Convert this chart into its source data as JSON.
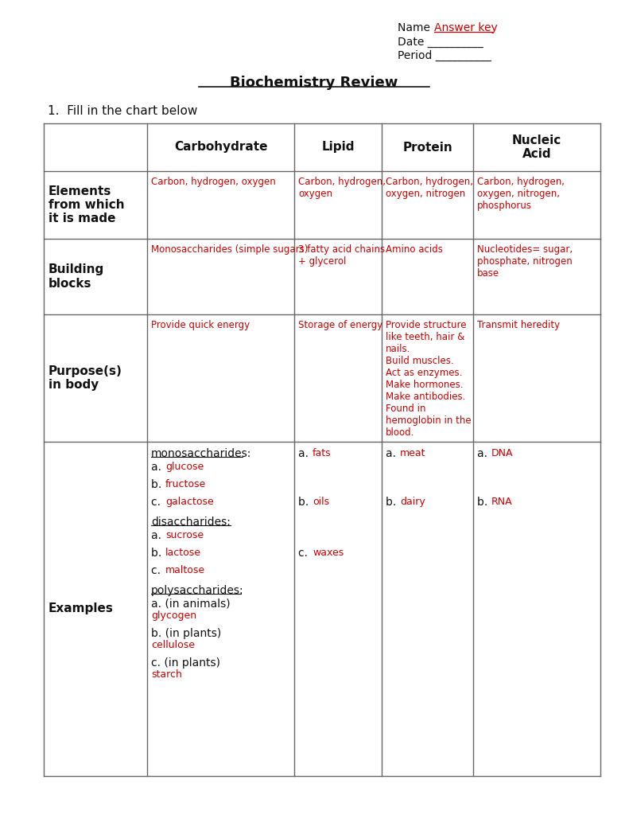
{
  "title": "Biochemistry Review",
  "subtitle": "1.  Fill in the chart below",
  "name_answer": "Answer key",
  "red": "#cc0000",
  "black": "#111111",
  "gray_line": "#666666",
  "bg": "#ffffff",
  "col_headers": [
    "Carbohydrate",
    "Lipid",
    "Protein",
    "Nucleic\nAcid"
  ],
  "row_headers": [
    "Elements\nfrom which\nit is made",
    "Building\nblocks",
    "Purpose(s)\nin body",
    "Examples"
  ],
  "cells_elements": {
    "carb": "Carbon, hydrogen, oxygen",
    "lipid": "Carbon, hydrogen,\noxygen",
    "protein": "Carbon, hydrogen,\noxygen, nitrogen",
    "nucleic": "Carbon, hydrogen,\noxygen, nitrogen,\nphosphorus"
  },
  "cells_building": {
    "carb": "Monosaccharides (simple sugars)",
    "lipid": "3 fatty acid chains\n+ glycerol",
    "protein": "Amino acids",
    "nucleic": "Nucleotides= sugar,\nphosphate, nitrogen\nbase"
  },
  "cells_purpose": {
    "carb": "Provide quick energy",
    "lipid": "Storage of energy",
    "protein": "Provide structure\nlike teeth, hair &\nnails.\nBuild muscles.\nAct as enzymes.\nMake hormones.\nMake antibodies.\nFound in\nhemoglobin in the\nblood.",
    "nucleic": "Transmit heredity"
  }
}
